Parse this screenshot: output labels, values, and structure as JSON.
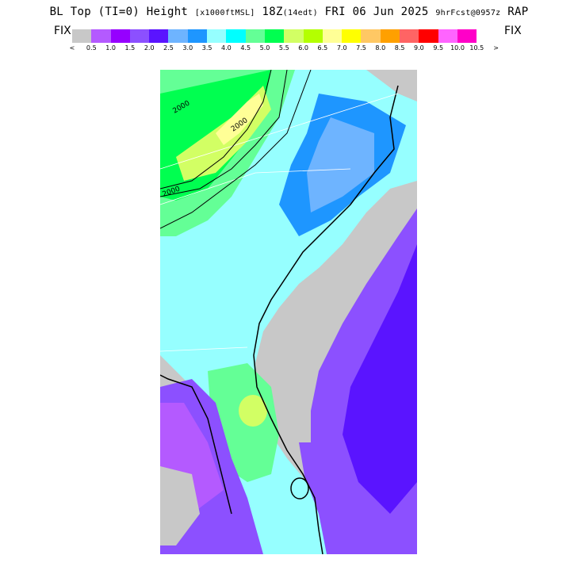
{
  "header": {
    "title_main": "BL Top (TI=0) Height",
    "title_units": "[x1000ftMSL]",
    "title_time": "18Z",
    "title_local": "(14edt)",
    "title_date": "FRI 06 Jun 2025",
    "title_fcst": "9hrFcst@0957z",
    "title_model": "RAP"
  },
  "legend": {
    "fix_left": "FIX",
    "fix_right": "FIX",
    "colors": [
      "#c8c8c8",
      "#b45aff",
      "#9600ff",
      "#8c50ff",
      "#5a14ff",
      "#6eb4ff",
      "#1e96ff",
      "#96ffff",
      "#00ffff",
      "#64ff96",
      "#00ff50",
      "#d2ff64",
      "#b4ff00",
      "#ffff96",
      "#ffff00",
      "#ffc864",
      "#ffa000",
      "#ff6464",
      "#ff0000",
      "#ff64ff",
      "#ff00c8"
    ],
    "tick_labels": [
      "<",
      "0.5",
      "1.0",
      "1.5",
      "2.0",
      "2.5",
      "3.0",
      "3.5",
      "4.0",
      "4.5",
      "5.0",
      "5.5",
      "6.0",
      "6.5",
      "7.0",
      "7.5",
      "8.0",
      "8.5",
      "9.0",
      "9.5",
      "10.0",
      "10.5",
      ">"
    ]
  },
  "map": {
    "contour_labels": [
      "2000",
      "2000",
      "2000"
    ]
  }
}
